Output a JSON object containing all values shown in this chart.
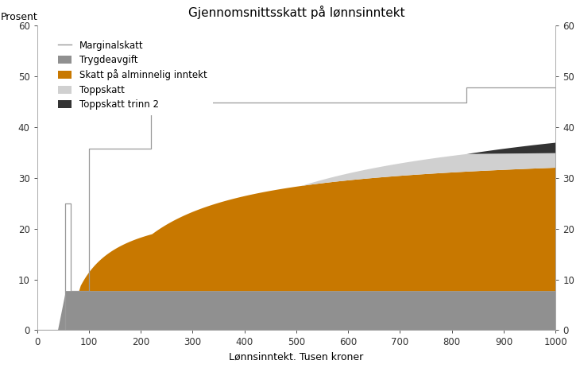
{
  "title": "Gjennomsnittsskatt på lønnsinntekt",
  "xlabel": "Lønnsinntekt. Tusen kroner",
  "ylabel_left": "Prosent",
  "xlim": [
    0,
    1000
  ],
  "ylim": [
    0,
    60
  ],
  "x_ticks": [
    0,
    100,
    200,
    300,
    400,
    500,
    600,
    700,
    800,
    900,
    1000
  ],
  "y_ticks": [
    0,
    10,
    20,
    30,
    40,
    50,
    60
  ],
  "colors": {
    "trygdeavgift": "#909090",
    "alminnelig": "#C87800",
    "toppskatt": "#D0D0D0",
    "toppskatt2": "#333333",
    "marginalskatt": "#999999"
  },
  "marg_x": [
    0,
    55,
    55,
    65,
    65,
    100,
    100,
    220,
    220,
    509.6,
    509.6,
    828.3,
    828.3,
    1000
  ],
  "marg_y": [
    0,
    0,
    25.0,
    25.0,
    7.8,
    7.8,
    35.8,
    35.8,
    44.8,
    44.8,
    44.8,
    44.8,
    47.8,
    47.8
  ]
}
